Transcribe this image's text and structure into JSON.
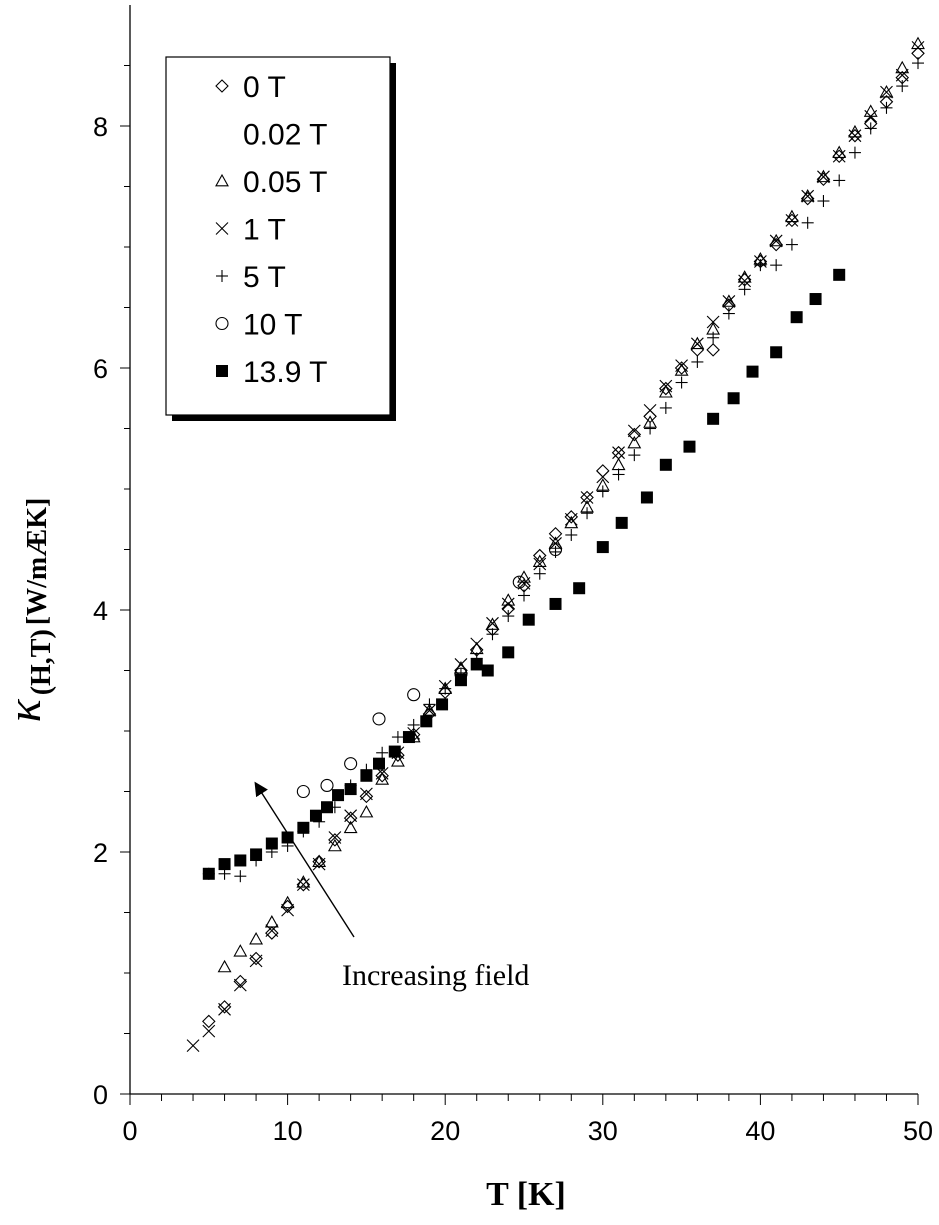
{
  "chart_data": {
    "type": "scatter",
    "xlabel": "T [K]",
    "ylabel_symbol": "κ",
    "ylabel_sub": "(H,T)",
    "ylabel_unit": " [W/mÆK]",
    "xlim": [
      0,
      50
    ],
    "ylim": [
      0,
      9
    ],
    "xticks": [
      0,
      10,
      20,
      30,
      40,
      50
    ],
    "yticks": [
      0,
      2,
      4,
      6,
      8
    ],
    "grid": false,
    "legend_position": "top-left",
    "annotation": "Increasing field",
    "series": [
      {
        "name": "0 T",
        "marker": "diamond",
        "x": [
          5,
          6,
          7,
          8,
          9,
          10,
          11,
          12,
          13,
          14,
          15,
          16,
          17,
          18,
          19,
          20,
          21,
          22,
          23,
          24,
          25,
          26,
          27,
          28,
          29,
          30,
          31,
          32,
          33,
          34,
          35,
          36,
          37,
          38,
          39,
          40,
          41,
          42,
          43,
          44,
          45,
          46,
          47,
          48,
          49,
          50
        ],
        "y": [
          0.6,
          0.72,
          0.93,
          1.12,
          1.33,
          1.55,
          1.73,
          1.92,
          2.1,
          2.28,
          2.46,
          2.63,
          2.8,
          2.97,
          3.14,
          3.32,
          3.5,
          3.67,
          3.84,
          4.01,
          4.2,
          4.45,
          4.63,
          4.77,
          4.93,
          5.15,
          5.3,
          5.45,
          5.6,
          5.83,
          6.0,
          6.15,
          6.15,
          6.52,
          6.73,
          6.88,
          7.02,
          7.22,
          7.4,
          7.56,
          7.75,
          7.92,
          8.02,
          8.2,
          8.4,
          8.6
        ]
      },
      {
        "name": "0.02 T",
        "marker": "none",
        "x": [],
        "y": []
      },
      {
        "name": "0.05 T",
        "marker": "triangle",
        "x": [
          6,
          7,
          8,
          9,
          10,
          11,
          12,
          13,
          14,
          15,
          16,
          17,
          18,
          19,
          20,
          21,
          22,
          23,
          24,
          25,
          26,
          27,
          28,
          29,
          30,
          31,
          32,
          33,
          34,
          35,
          36,
          37,
          38,
          39,
          40,
          41,
          42,
          43,
          44,
          45,
          46,
          47,
          48,
          49,
          50
        ],
        "y": [
          1.05,
          1.18,
          1.28,
          1.42,
          1.58,
          1.75,
          1.92,
          2.05,
          2.2,
          2.33,
          2.6,
          2.75,
          2.95,
          3.17,
          3.35,
          3.52,
          3.68,
          3.88,
          4.08,
          4.27,
          4.4,
          4.55,
          4.72,
          4.85,
          5.03,
          5.2,
          5.38,
          5.55,
          5.8,
          5.98,
          6.2,
          6.32,
          6.55,
          6.75,
          6.9,
          7.05,
          7.25,
          7.42,
          7.58,
          7.78,
          7.95,
          8.12,
          8.28,
          8.48,
          8.68
        ]
      },
      {
        "name": "1 T",
        "marker": "x",
        "x": [
          4,
          5,
          6,
          7,
          8,
          9,
          10,
          11,
          12,
          13,
          14,
          15,
          16,
          17,
          18,
          19,
          20,
          21,
          22,
          23,
          24,
          25,
          26,
          27,
          28,
          29,
          30,
          31,
          32,
          33,
          34,
          35,
          36,
          37,
          38,
          39,
          40,
          41,
          42,
          43,
          44,
          45,
          46,
          47,
          48,
          49,
          50
        ],
        "y": [
          0.4,
          0.52,
          0.7,
          0.9,
          1.1,
          1.35,
          1.52,
          1.73,
          1.9,
          2.12,
          2.3,
          2.48,
          2.65,
          2.82,
          2.98,
          3.17,
          3.37,
          3.55,
          3.72,
          3.89,
          4.05,
          4.22,
          4.38,
          4.55,
          4.75,
          4.93,
          5.1,
          5.3,
          5.48,
          5.65,
          5.85,
          6.02,
          6.2,
          6.38,
          6.55,
          6.72,
          6.88,
          7.05,
          7.22,
          7.42,
          7.58,
          7.75,
          7.92,
          8.08,
          8.28,
          8.42,
          8.65
        ]
      },
      {
        "name": "5 T",
        "marker": "plus",
        "x": [
          5,
          6,
          7,
          8,
          9,
          10,
          11,
          12,
          13,
          14,
          15,
          16,
          17,
          18,
          19,
          20,
          21,
          22,
          23,
          24,
          25,
          26,
          27,
          28,
          29,
          30,
          31,
          32,
          33,
          34,
          35,
          36,
          37,
          38,
          39,
          40,
          41,
          42,
          43,
          44,
          45,
          46,
          47,
          48,
          49,
          50
        ],
        "y": [
          1.82,
          1.82,
          1.8,
          1.93,
          2.0,
          2.05,
          2.17,
          2.25,
          2.37,
          2.55,
          2.68,
          2.82,
          2.95,
          3.05,
          3.22,
          3.35,
          3.47,
          3.6,
          3.8,
          3.95,
          4.12,
          4.3,
          4.48,
          4.62,
          4.8,
          4.98,
          5.12,
          5.28,
          5.5,
          5.67,
          5.88,
          6.05,
          6.25,
          6.45,
          6.65,
          6.85,
          6.85,
          7.02,
          7.2,
          7.38,
          7.55,
          7.78,
          7.98,
          8.15,
          8.33,
          8.52
        ]
      },
      {
        "name": "10 T",
        "marker": "circle",
        "x": [
          11,
          12.5,
          14,
          15.8,
          18,
          21,
          24.7,
          27
        ],
        "y": [
          2.5,
          2.55,
          2.73,
          3.1,
          3.3,
          3.47,
          4.23,
          4.5
        ]
      },
      {
        "name": "13.9 T",
        "marker": "square",
        "x": [
          5,
          6,
          7,
          8,
          9,
          10,
          11,
          11.8,
          12.5,
          13.2,
          14,
          15,
          15.8,
          16.8,
          17.7,
          18.8,
          19.8,
          21,
          22,
          22.7,
          24,
          25.3,
          27,
          28.5,
          30,
          31.2,
          32.8,
          34,
          35.5,
          37,
          38.3,
          39.5,
          41,
          42.3,
          43.5,
          45
        ],
        "y": [
          1.82,
          1.9,
          1.93,
          1.98,
          2.07,
          2.12,
          2.2,
          2.3,
          2.37,
          2.47,
          2.52,
          2.63,
          2.73,
          2.83,
          2.95,
          3.08,
          3.22,
          3.42,
          3.55,
          3.5,
          3.65,
          3.92,
          4.05,
          4.18,
          4.52,
          4.72,
          4.93,
          5.2,
          5.35,
          5.58,
          5.75,
          5.97,
          6.13,
          6.42,
          6.57,
          6.77
        ]
      }
    ]
  }
}
